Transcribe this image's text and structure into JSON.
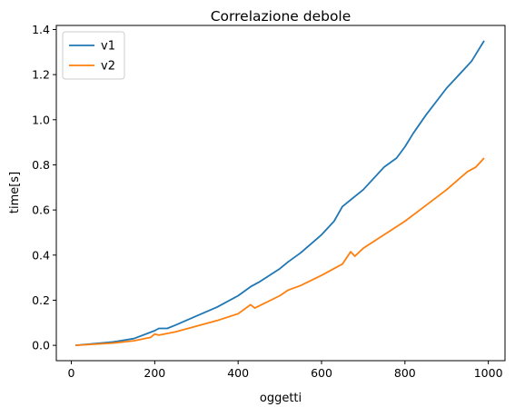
{
  "chart_data": {
    "type": "line",
    "title": "Correlazione debole",
    "xlabel": "oggetti",
    "ylabel": "time[s]",
    "xlim": [
      -36,
      1040
    ],
    "ylim": [
      -0.068,
      1.418
    ],
    "xticks": [
      0,
      200,
      400,
      600,
      800,
      1000
    ],
    "yticks": [
      0.0,
      0.2,
      0.4,
      0.6,
      0.8,
      1.0,
      1.2,
      1.4
    ],
    "ytick_labels": [
      "0.0",
      "0.2",
      "0.4",
      "0.6",
      "0.8",
      "1.0",
      "1.2",
      "1.4"
    ],
    "grid": false,
    "legend": "top-left",
    "series": [
      {
        "name": "v1",
        "color": "#1f77b4",
        "x": [
          10,
          100,
          150,
          200,
          210,
          230,
          250,
          300,
          350,
          400,
          430,
          450,
          500,
          520,
          550,
          600,
          630,
          650,
          700,
          750,
          780,
          800,
          820,
          850,
          900,
          920,
          940,
          960,
          990
        ],
        "y": [
          0.0,
          0.015,
          0.03,
          0.065,
          0.075,
          0.075,
          0.09,
          0.13,
          0.17,
          0.22,
          0.26,
          0.28,
          0.34,
          0.37,
          0.41,
          0.49,
          0.55,
          0.615,
          0.69,
          0.79,
          0.83,
          0.88,
          0.94,
          1.02,
          1.14,
          1.18,
          1.22,
          1.26,
          1.35
        ]
      },
      {
        "name": "v2",
        "color": "#ff7f0e",
        "x": [
          10,
          100,
          150,
          190,
          200,
          210,
          250,
          300,
          350,
          400,
          430,
          440,
          500,
          520,
          550,
          600,
          650,
          670,
          680,
          700,
          750,
          800,
          850,
          900,
          950,
          970,
          990
        ],
        "y": [
          0.0,
          0.01,
          0.02,
          0.035,
          0.05,
          0.045,
          0.06,
          0.085,
          0.11,
          0.14,
          0.18,
          0.165,
          0.22,
          0.245,
          0.265,
          0.31,
          0.36,
          0.415,
          0.395,
          0.43,
          0.49,
          0.55,
          0.62,
          0.69,
          0.77,
          0.79,
          0.83
        ]
      }
    ]
  }
}
